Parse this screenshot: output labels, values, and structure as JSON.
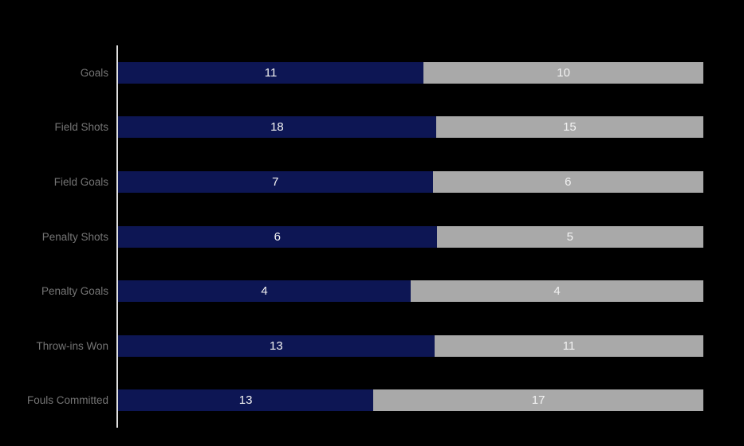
{
  "chart_data": {
    "type": "bar",
    "orientation": "horizontal",
    "stacking": "percent",
    "title": "",
    "xlabel": "",
    "ylabel": "",
    "legend": "none",
    "gridlines": false,
    "background_color": "#000000",
    "axis_line_color": "#e0e0e0",
    "category_label_color": "#757575",
    "value_label_color": "#f2f2f2",
    "categories": [
      "Goals",
      "Field Shots",
      "Field Goals",
      "Penalty Shots",
      "Penalty Goals",
      "Throw-ins Won",
      "Fouls Committed"
    ],
    "series": [
      {
        "name": "navy-series",
        "color": "#0d1654",
        "values": [
          11,
          18,
          7,
          6,
          4,
          13,
          13
        ]
      },
      {
        "name": "gray-series",
        "color": "#a9a9a9",
        "values": [
          10,
          15,
          6,
          5,
          4,
          11,
          17
        ]
      }
    ]
  }
}
